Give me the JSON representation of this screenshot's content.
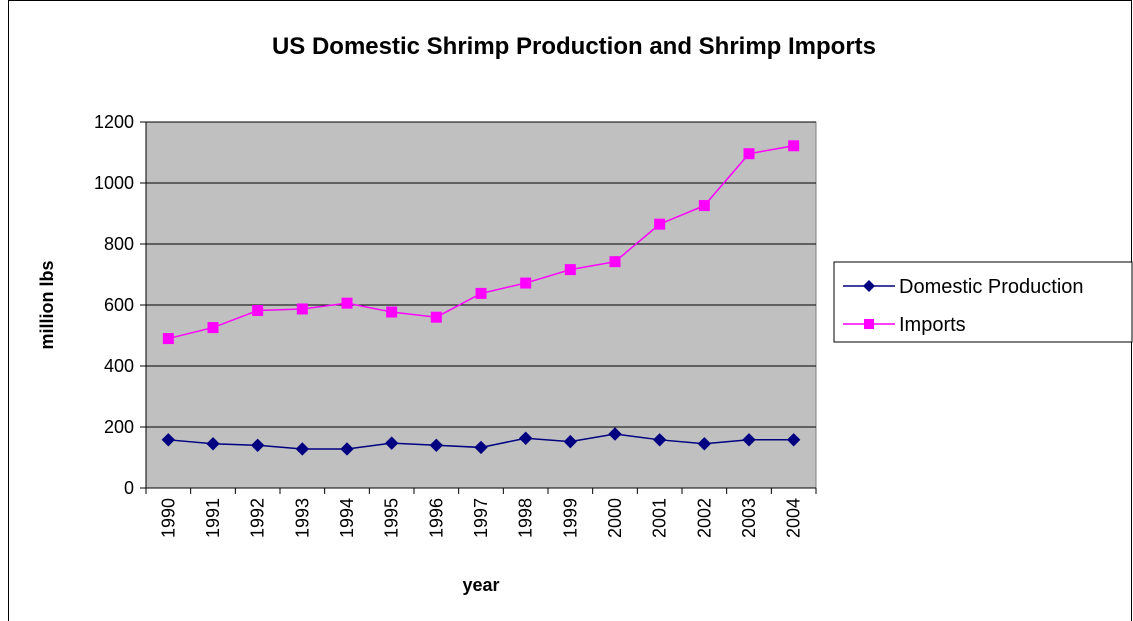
{
  "chart_data": {
    "type": "line",
    "title": "US Domestic Shrimp Production and Shrimp Imports",
    "xlabel": "year",
    "ylabel": "million lbs",
    "categories": [
      "1990",
      "1991",
      "1992",
      "1993",
      "1994",
      "1995",
      "1996",
      "1997",
      "1998",
      "1999",
      "2000",
      "2001",
      "2002",
      "2003",
      "2004"
    ],
    "ylim": [
      0,
      1200
    ],
    "yticks": [
      "0",
      "200",
      "400",
      "600",
      "800",
      "1000",
      "1200"
    ],
    "grid": true,
    "legend_position": "right",
    "series": [
      {
        "name": "Domestic Production",
        "color": "#000080",
        "marker": "diamond",
        "values": [
          158,
          145,
          140,
          128,
          128,
          147,
          140,
          133,
          163,
          152,
          177,
          158,
          145,
          158,
          158
        ]
      },
      {
        "name": "Imports",
        "color": "#FF00FF",
        "marker": "square",
        "values": [
          490,
          526,
          582,
          587,
          606,
          577,
          560,
          638,
          672,
          716,
          742,
          865,
          926,
          1096,
          1122
        ]
      }
    ],
    "colors": {
      "plot_background": "#C0C0C0",
      "gridline": "#000000",
      "axis": "#000000"
    }
  }
}
